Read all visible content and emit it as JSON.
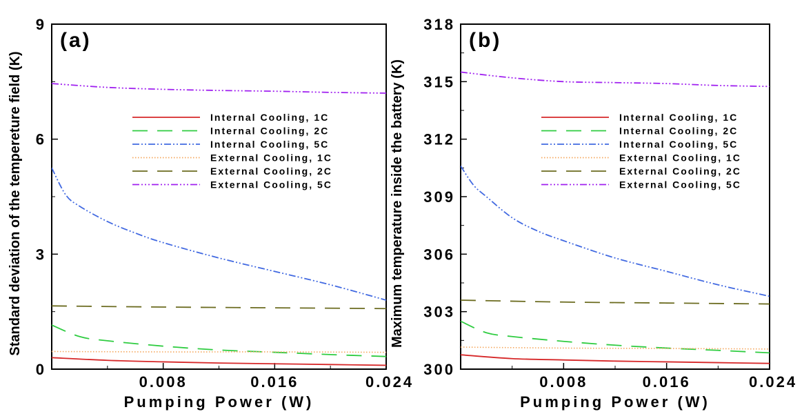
{
  "chart_data": [
    {
      "type": "line",
      "panel_label": "(a)",
      "title": "",
      "xlabel": "Pumping Power (W)",
      "ylabel": "Standard deviation of the tempereture field (K)",
      "xlim": [
        0,
        0.024
      ],
      "ylim": [
        0,
        9
      ],
      "x_ticks": [
        0.008,
        0.016,
        0.024
      ],
      "x_tick_labels": [
        "0.008",
        "0.016",
        "0.024"
      ],
      "y_ticks": [
        0,
        3,
        6,
        9
      ],
      "y_tick_labels": [
        "0",
        "3",
        "6",
        "9"
      ],
      "legend_position": "top-right",
      "series": [
        {
          "name": "Internal Cooling, 1C",
          "color": "#d62728",
          "dash": "solid",
          "x": [
            0,
            0.004,
            0.008,
            0.012,
            0.016,
            0.02,
            0.024
          ],
          "y": [
            0.3,
            0.23,
            0.19,
            0.16,
            0.14,
            0.12,
            0.1
          ]
        },
        {
          "name": "Internal Cooling, 2C",
          "color": "#2ecc40",
          "dash": "long",
          "x": [
            0,
            0.002,
            0.004,
            0.008,
            0.012,
            0.016,
            0.02,
            0.024
          ],
          "y": [
            1.15,
            0.85,
            0.74,
            0.6,
            0.5,
            0.44,
            0.38,
            0.33
          ]
        },
        {
          "name": "Internal Cooling, 5C",
          "color": "#4169e1",
          "dash": "dashdotdot",
          "x": [
            0,
            0.001,
            0.002,
            0.004,
            0.006,
            0.008,
            0.012,
            0.016,
            0.02,
            0.024
          ],
          "y": [
            5.25,
            4.55,
            4.25,
            3.85,
            3.55,
            3.3,
            2.9,
            2.55,
            2.2,
            1.8
          ]
        },
        {
          "name": "External Cooling, 1C",
          "color": "#f5a65b",
          "dash": "dotted",
          "x": [
            0,
            0.008,
            0.016,
            0.024
          ],
          "y": [
            0.46,
            0.45,
            0.45,
            0.44
          ]
        },
        {
          "name": "External Cooling, 2C",
          "color": "#6b6b1f",
          "dash": "long",
          "x": [
            0,
            0.008,
            0.016,
            0.024
          ],
          "y": [
            1.65,
            1.62,
            1.6,
            1.58
          ]
        },
        {
          "name": "External Cooling, 5C",
          "color": "#a020f0",
          "dash": "dashdotdotdot",
          "x": [
            0,
            0.004,
            0.008,
            0.012,
            0.016,
            0.02,
            0.024
          ],
          "y": [
            7.45,
            7.35,
            7.3,
            7.27,
            7.25,
            7.22,
            7.2
          ]
        }
      ]
    },
    {
      "type": "line",
      "panel_label": "(b)",
      "title": "",
      "xlabel": "Pumping Power (W)",
      "ylabel": "Maximum temperature inside the battery (K)",
      "xlim": [
        0,
        0.024
      ],
      "ylim": [
        300,
        318
      ],
      "x_ticks": [
        0.008,
        0.016,
        0.024
      ],
      "x_tick_labels": [
        "0.008",
        "0.016",
        "0.024"
      ],
      "y_ticks": [
        300,
        303,
        306,
        309,
        312,
        315,
        318
      ],
      "y_tick_labels": [
        "300",
        "303",
        "306",
        "309",
        "312",
        "315",
        "318"
      ],
      "legend_position": "top-right",
      "series": [
        {
          "name": "Internal Cooling, 1C",
          "color": "#d62728",
          "dash": "solid",
          "x": [
            0,
            0.004,
            0.008,
            0.012,
            0.016,
            0.02,
            0.024
          ],
          "y": [
            300.75,
            300.55,
            300.48,
            300.42,
            300.38,
            300.34,
            300.3
          ]
        },
        {
          "name": "Internal Cooling, 2C",
          "color": "#2ecc40",
          "dash": "long",
          "x": [
            0,
            0.002,
            0.004,
            0.008,
            0.012,
            0.016,
            0.02,
            0.024
          ],
          "y": [
            302.5,
            301.9,
            301.7,
            301.45,
            301.25,
            301.1,
            300.98,
            300.85
          ]
        },
        {
          "name": "Internal Cooling, 5C",
          "color": "#4169e1",
          "dash": "dashdotdot",
          "x": [
            0,
            0.001,
            0.002,
            0.004,
            0.006,
            0.008,
            0.012,
            0.016,
            0.02,
            0.024
          ],
          "y": [
            310.6,
            309.6,
            309.0,
            307.9,
            307.2,
            306.7,
            305.8,
            305.1,
            304.4,
            303.8
          ]
        },
        {
          "name": "External Cooling, 1C",
          "color": "#f5a65b",
          "dash": "dotted",
          "x": [
            0,
            0.008,
            0.016,
            0.024
          ],
          "y": [
            301.15,
            301.1,
            301.08,
            301.05
          ]
        },
        {
          "name": "External Cooling, 2C",
          "color": "#6b6b1f",
          "dash": "long",
          "x": [
            0,
            0.008,
            0.016,
            0.024
          ],
          "y": [
            303.6,
            303.5,
            303.45,
            303.4
          ]
        },
        {
          "name": "External Cooling, 5C",
          "color": "#a020f0",
          "dash": "dashdotdotdot",
          "x": [
            0,
            0.004,
            0.008,
            0.012,
            0.016,
            0.02,
            0.024
          ],
          "y": [
            315.5,
            315.2,
            315.0,
            314.95,
            314.9,
            314.8,
            314.75
          ]
        }
      ]
    }
  ]
}
